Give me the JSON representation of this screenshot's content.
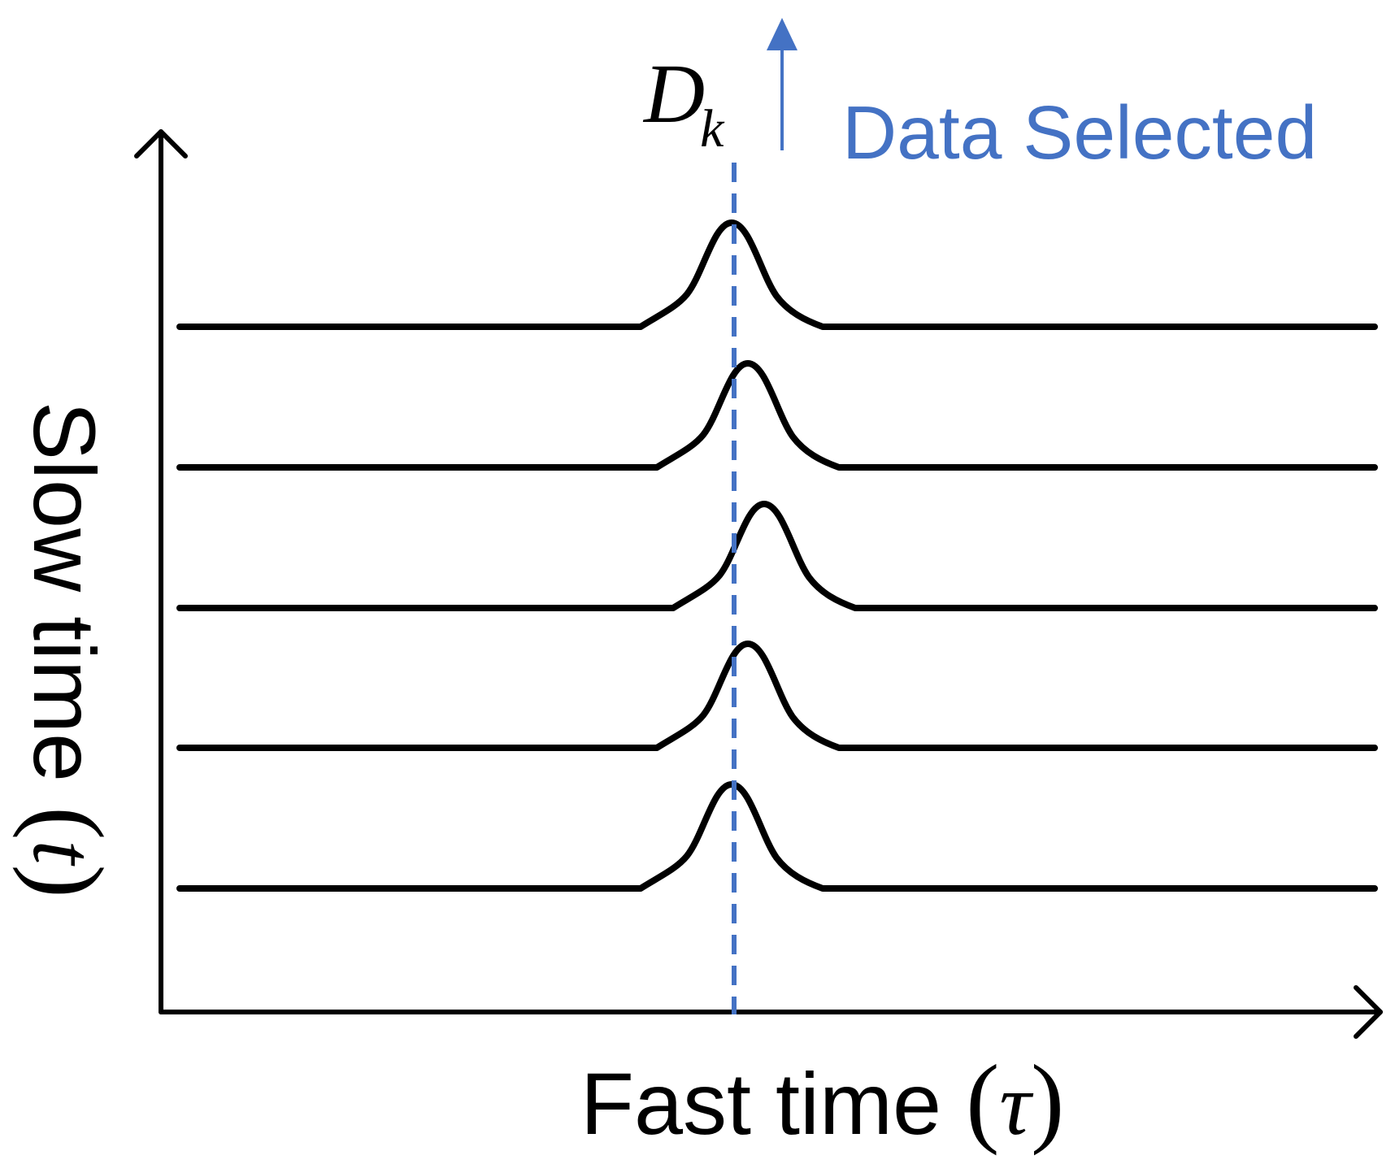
{
  "axes": {
    "x_label_text": "Fast time ",
    "x_label_symbol": "τ",
    "y_label_text": "Slow time ",
    "y_label_symbol": "t"
  },
  "annotation": {
    "symbol_main": "D",
    "symbol_subscript": "k",
    "label": "Data Selected"
  },
  "colors": {
    "axis": "#000000",
    "trace": "#000000",
    "annotation": "#4472C4"
  },
  "echo_traces": {
    "count": 5,
    "peak_offsets": [
      0,
      20,
      40,
      20,
      0
    ]
  }
}
